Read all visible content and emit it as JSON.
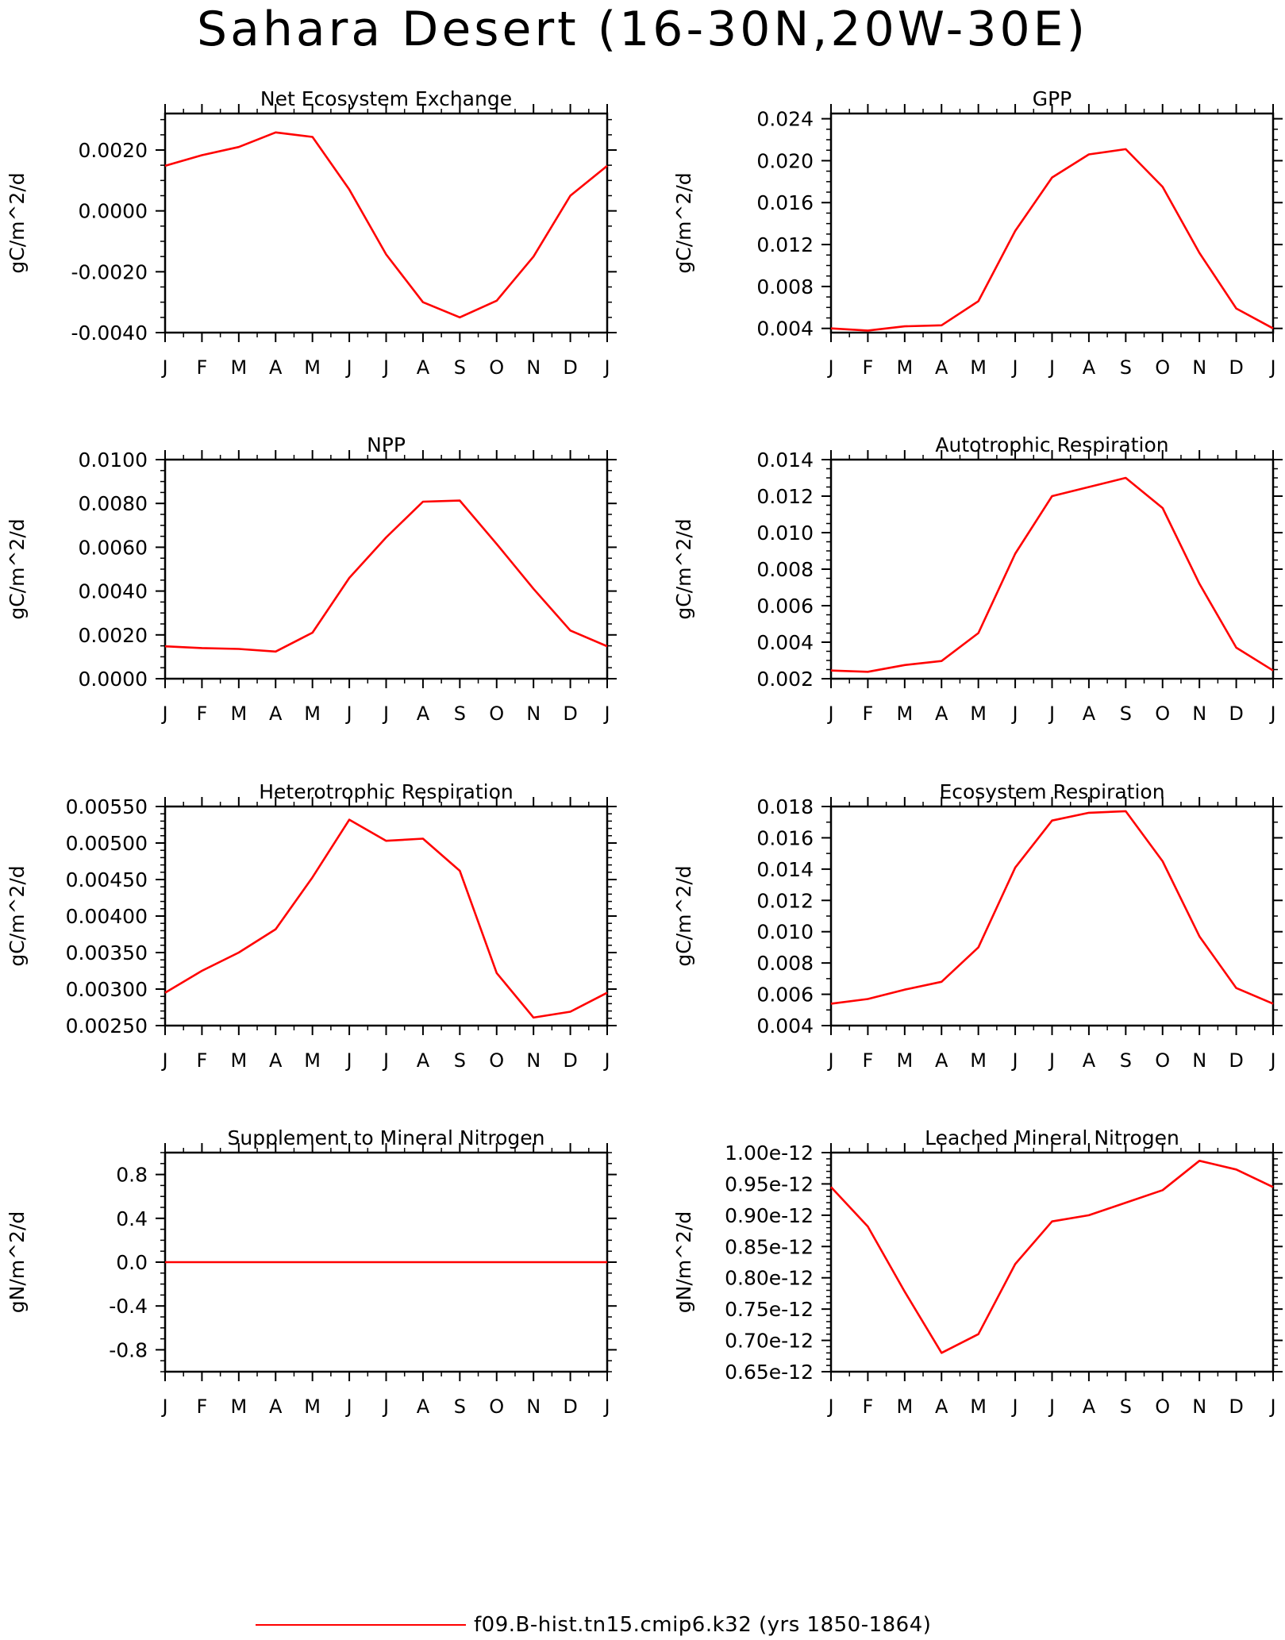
{
  "figure": {
    "title": "Sahara Desert (16-30N,20W-30E)",
    "legend_label": "f09.B-hist.tn15.cmip6.k32 (yrs 1850-1864)",
    "line_color": "#ff0000"
  },
  "chart_data": [
    {
      "type": "line",
      "title": "Net Ecosystem Exchange",
      "ylabel": "gC/m^2/d",
      "categories": [
        "J",
        "F",
        "M",
        "A",
        "M",
        "J",
        "J",
        "A",
        "S",
        "O",
        "N",
        "D",
        "J"
      ],
      "values": [
        0.00148,
        0.00183,
        0.0021,
        0.00258,
        0.00243,
        0.0007,
        -0.00143,
        -0.003,
        -0.0035,
        -0.00295,
        -0.0015,
        0.0005,
        0.00148
      ],
      "ylim": [
        -0.004,
        0.0032
      ],
      "yticks": [
        -0.004,
        -0.002,
        0.0,
        0.002
      ],
      "yticklabels": [
        "-0.0040",
        "-0.0020",
        "0.0000",
        "0.0020"
      ],
      "yminor": 0.0005
    },
    {
      "type": "line",
      "title": "GPP",
      "ylabel": "gC/m^2/d",
      "categories": [
        "J",
        "F",
        "M",
        "A",
        "M",
        "J",
        "J",
        "A",
        "S",
        "O",
        "N",
        "D",
        "J"
      ],
      "values": [
        0.004,
        0.0038,
        0.0042,
        0.0043,
        0.0066,
        0.0133,
        0.0184,
        0.0206,
        0.0211,
        0.0175,
        0.0112,
        0.0059,
        0.004
      ],
      "ylim": [
        0.0036,
        0.0245
      ],
      "yticks": [
        0.004,
        0.008,
        0.012,
        0.016,
        0.02,
        0.024
      ],
      "yticklabels": [
        "0.004",
        "0.008",
        "0.012",
        "0.016",
        "0.020",
        "0.024"
      ],
      "yminor": 0.001
    },
    {
      "type": "line",
      "title": "NPP",
      "ylabel": "gC/m^2/d",
      "categories": [
        "J",
        "F",
        "M",
        "A",
        "M",
        "J",
        "J",
        "A",
        "S",
        "O",
        "N",
        "D",
        "J"
      ],
      "values": [
        0.00148,
        0.0014,
        0.00136,
        0.00124,
        0.0021,
        0.0046,
        0.00645,
        0.00808,
        0.00813,
        0.00615,
        0.0041,
        0.0022,
        0.00148
      ],
      "ylim": [
        0.0,
        0.01
      ],
      "yticks": [
        0.0,
        0.002,
        0.004,
        0.006,
        0.008,
        0.01
      ],
      "yticklabels": [
        "0.0000",
        "0.0020",
        "0.0040",
        "0.0060",
        "0.0080",
        "0.0100"
      ],
      "yminor": 0.0005
    },
    {
      "type": "line",
      "title": "Autotrophic Respiration",
      "ylabel": "gC/m^2/d",
      "categories": [
        "J",
        "F",
        "M",
        "A",
        "M",
        "J",
        "J",
        "A",
        "S",
        "O",
        "N",
        "D",
        "J"
      ],
      "values": [
        0.00245,
        0.00238,
        0.00275,
        0.00297,
        0.0045,
        0.00885,
        0.012,
        0.0125,
        0.013,
        0.01135,
        0.0072,
        0.0037,
        0.00245
      ],
      "ylim": [
        0.002,
        0.014
      ],
      "yticks": [
        0.002,
        0.004,
        0.006,
        0.008,
        0.01,
        0.012,
        0.014
      ],
      "yticklabels": [
        "0.002",
        "0.004",
        "0.006",
        "0.008",
        "0.010",
        "0.012",
        "0.014"
      ],
      "yminor": 0.0005
    },
    {
      "type": "line",
      "title": "Heterotrophic Respiration",
      "ylabel": "gC/m^2/d",
      "categories": [
        "J",
        "F",
        "M",
        "A",
        "M",
        "J",
        "J",
        "A",
        "S",
        "O",
        "N",
        "D",
        "J"
      ],
      "values": [
        0.00295,
        0.00325,
        0.0035,
        0.00382,
        0.00453,
        0.00532,
        0.00503,
        0.00506,
        0.00462,
        0.00322,
        0.00261,
        0.00269,
        0.00295
      ],
      "ylim": [
        0.0025,
        0.0055
      ],
      "yticks": [
        0.0025,
        0.003,
        0.0035,
        0.004,
        0.0045,
        0.005,
        0.0055
      ],
      "yticklabels": [
        "0.00250",
        "0.00300",
        "0.00350",
        "0.00400",
        "0.00450",
        "0.00500",
        "0.00550"
      ],
      "yminor": 0.0001
    },
    {
      "type": "line",
      "title": "Ecosystem Respiration",
      "ylabel": "gC/m^2/d",
      "categories": [
        "J",
        "F",
        "M",
        "A",
        "M",
        "J",
        "J",
        "A",
        "S",
        "O",
        "N",
        "D",
        "J"
      ],
      "values": [
        0.0054,
        0.0057,
        0.0063,
        0.0068,
        0.009,
        0.0141,
        0.0171,
        0.0176,
        0.0177,
        0.0145,
        0.0097,
        0.0064,
        0.0054
      ],
      "ylim": [
        0.004,
        0.018
      ],
      "yticks": [
        0.004,
        0.006,
        0.008,
        0.01,
        0.012,
        0.014,
        0.016,
        0.018
      ],
      "yticklabels": [
        "0.004",
        "0.006",
        "0.008",
        "0.010",
        "0.012",
        "0.014",
        "0.016",
        "0.018"
      ],
      "yminor": 0.001
    },
    {
      "type": "line",
      "title": "Supplement to Mineral Nitrogen",
      "ylabel": "gN/m^2/d",
      "categories": [
        "J",
        "F",
        "M",
        "A",
        "M",
        "J",
        "J",
        "A",
        "S",
        "O",
        "N",
        "D",
        "J"
      ],
      "values": [
        0,
        0,
        0,
        0,
        0,
        0,
        0,
        0,
        0,
        0,
        0,
        0,
        0
      ],
      "ylim": [
        -1.0,
        1.0
      ],
      "yticks": [
        -0.8,
        -0.4,
        0.0,
        0.4,
        0.8
      ],
      "yticklabels": [
        "-0.8",
        "-0.4",
        "0.0",
        "0.4",
        "0.8"
      ],
      "yminor": 0.1
    },
    {
      "type": "line",
      "title": "Leached Mineral Nitrogen",
      "ylabel": "gN/m^2/d",
      "categories": [
        "J",
        "F",
        "M",
        "A",
        "M",
        "J",
        "J",
        "A",
        "S",
        "O",
        "N",
        "D",
        "J"
      ],
      "values": [
        9.45e-13,
        8.82e-13,
        7.78e-13,
        6.8e-13,
        7.1e-13,
        8.22e-13,
        8.9e-13,
        9e-13,
        9.2e-13,
        9.4e-13,
        9.87e-13,
        9.73e-13,
        9.45e-13
      ],
      "ylim": [
        6.5e-13,
        1e-12
      ],
      "yticks": [
        6.5e-13,
        7e-13,
        7.5e-13,
        8e-13,
        8.5e-13,
        9e-13,
        9.5e-13,
        1e-12
      ],
      "yticklabels": [
        "0.65e-12",
        "0.70e-12",
        "0.75e-12",
        "0.80e-12",
        "0.85e-12",
        "0.90e-12",
        "0.95e-12",
        "1.00e-12"
      ],
      "yminor": 1e-14
    }
  ]
}
